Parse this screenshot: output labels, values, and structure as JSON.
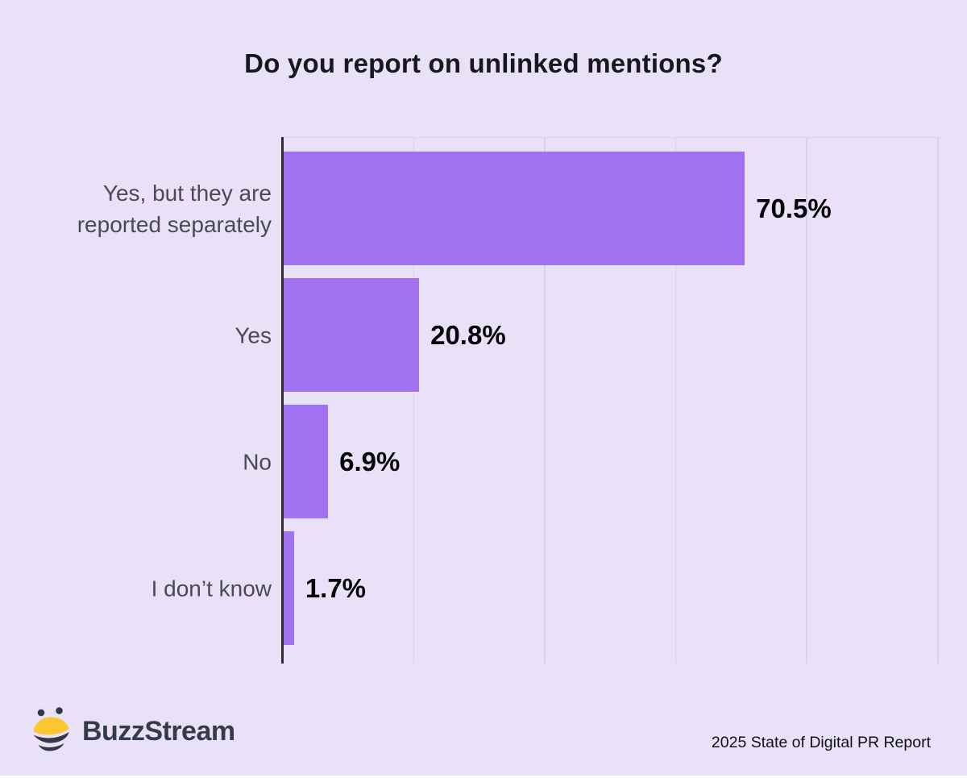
{
  "title": "Do you report on unlinked mentions?",
  "chart_data": {
    "type": "bar",
    "orientation": "horizontal",
    "title": "Do you report on unlinked mentions?",
    "categories": [
      "Yes, but they are\nreported separately",
      "Yes",
      "No",
      "I don’t know"
    ],
    "values": [
      70.5,
      20.8,
      6.9,
      1.7
    ],
    "value_labels": [
      "70.5%",
      "20.8%",
      "6.9%",
      "1.7%"
    ],
    "xlim": [
      0,
      100
    ],
    "gridline_interval": 20,
    "grid": true,
    "legend": false,
    "xlabel": "",
    "ylabel": ""
  },
  "colors": {
    "background": "#E8E1F8",
    "bar": "#A173F0",
    "axis": "#2D2D33",
    "gridline": "#D9D2ED",
    "title_text": "#18181F",
    "category_text": "#4A4A50",
    "value_text": "#050507",
    "logo_text": "#353B47",
    "bee_yellow": "#FBC62F",
    "bee_dark": "#333845"
  },
  "footer": {
    "logo_text": "BuzzStream",
    "attribution": "2025 State of Digital PR Report"
  },
  "icons": {
    "bee_icon": "buzzstream-bee-icon"
  }
}
